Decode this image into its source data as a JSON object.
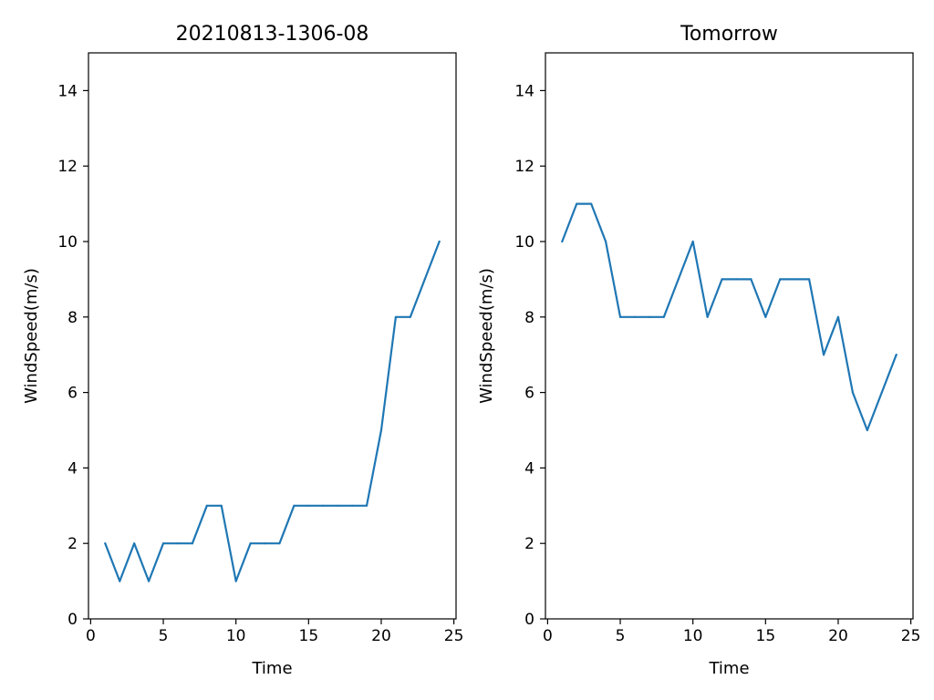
{
  "chart_data": [
    {
      "type": "line",
      "title": "20210813-1306-08",
      "xlabel": "Time",
      "ylabel": "WindSpeed(m/s)",
      "xlim": [
        -0.15,
        25.15
      ],
      "ylim": [
        0,
        15
      ],
      "xticks": [
        0,
        5,
        10,
        15,
        20,
        25
      ],
      "yticks": [
        0,
        2,
        4,
        6,
        8,
        10,
        12,
        14
      ],
      "grid": false,
      "series": [
        {
          "color": "#1f77b4",
          "x": [
            1,
            2,
            3,
            4,
            5,
            6,
            7,
            8,
            9,
            10,
            11,
            12,
            13,
            14,
            15,
            16,
            17,
            18,
            19,
            20,
            21,
            22,
            23,
            24
          ],
          "y": [
            2,
            1,
            2,
            1,
            2,
            2,
            2,
            3,
            3,
            1,
            2,
            2,
            2,
            3,
            3,
            3,
            3,
            3,
            3,
            5,
            8,
            8,
            9,
            10
          ]
        }
      ]
    },
    {
      "type": "line",
      "title": "Tomorrow",
      "xlabel": "Time",
      "ylabel": "WindSpeed(m/s)",
      "xlim": [
        -0.15,
        25.15
      ],
      "ylim": [
        0,
        15
      ],
      "xticks": [
        0,
        5,
        10,
        15,
        20,
        25
      ],
      "yticks": [
        0,
        2,
        4,
        6,
        8,
        10,
        12,
        14
      ],
      "grid": false,
      "series": [
        {
          "color": "#1f77b4",
          "x": [
            1,
            2,
            3,
            4,
            5,
            6,
            7,
            8,
            9,
            10,
            11,
            12,
            13,
            14,
            15,
            16,
            17,
            18,
            19,
            20,
            21,
            22,
            23,
            24
          ],
          "y": [
            10,
            11,
            11,
            10,
            8,
            8,
            8,
            8,
            9,
            10,
            8,
            9,
            9,
            9,
            8,
            9,
            9,
            9,
            7,
            8,
            6,
            5,
            6,
            7
          ]
        }
      ]
    }
  ]
}
